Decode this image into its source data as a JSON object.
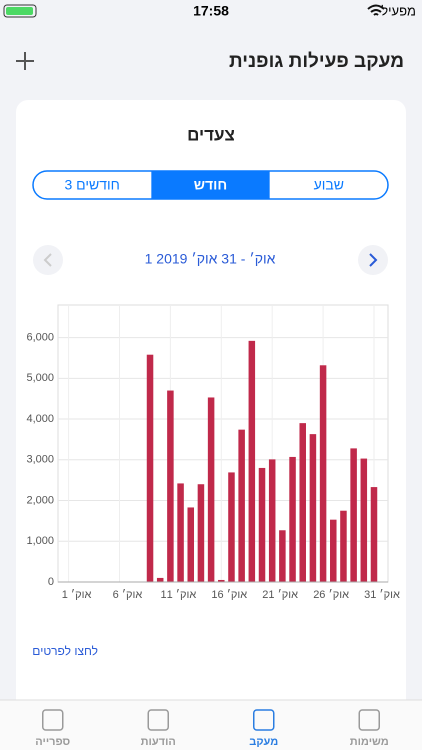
{
  "status_bar": {
    "carrier": "מפעיל",
    "time": "17:58"
  },
  "header": {
    "title": "מעקב פעילות גופנית"
  },
  "card": {
    "title": "צעדים",
    "segments": [
      "שבוע",
      "חודש",
      "3 חודשים"
    ],
    "selected_segment": "חודש",
    "date_range": "1 אוק׳ - 31 אוק׳ 2019",
    "details_link": "לחצו לפרטים"
  },
  "chart_data": {
    "type": "bar",
    "categories": [
      "1 אוק׳",
      null,
      null,
      null,
      null,
      "6 אוק׳",
      null,
      null,
      null,
      null,
      "11 אוק׳",
      null,
      null,
      null,
      null,
      "16 אוק׳",
      null,
      null,
      null,
      null,
      "21 אוק׳",
      null,
      null,
      null,
      null,
      "26 אוק׳",
      null,
      null,
      null,
      null,
      "31 אוק׳"
    ],
    "values": [
      0,
      0,
      0,
      0,
      0,
      0,
      0,
      0,
      5580,
      100,
      4700,
      2420,
      1830,
      2400,
      4530,
      50,
      2690,
      3740,
      5920,
      2800,
      3010,
      1270,
      3070,
      3900,
      3630,
      5320,
      1530,
      1750,
      3280,
      3030,
      2330
    ],
    "color": "#c0294a",
    "ylim": [
      0,
      6800
    ],
    "yticks": [
      0,
      {
        "value": 1000,
        "label": "1,000"
      },
      {
        "value": 2000,
        "label": "2,000"
      },
      {
        "value": 3000,
        "label": "3,000"
      },
      {
        "value": 4000,
        "label": "4,000"
      },
      {
        "value": 5000,
        "label": "5,000"
      },
      {
        "value": 6000,
        "label": "6,000"
      }
    ],
    "grid": true
  },
  "tab_bar": {
    "tabs": [
      "משימות",
      "מעקב",
      "הודעות",
      "ספרייה"
    ],
    "active": "מעקב"
  }
}
